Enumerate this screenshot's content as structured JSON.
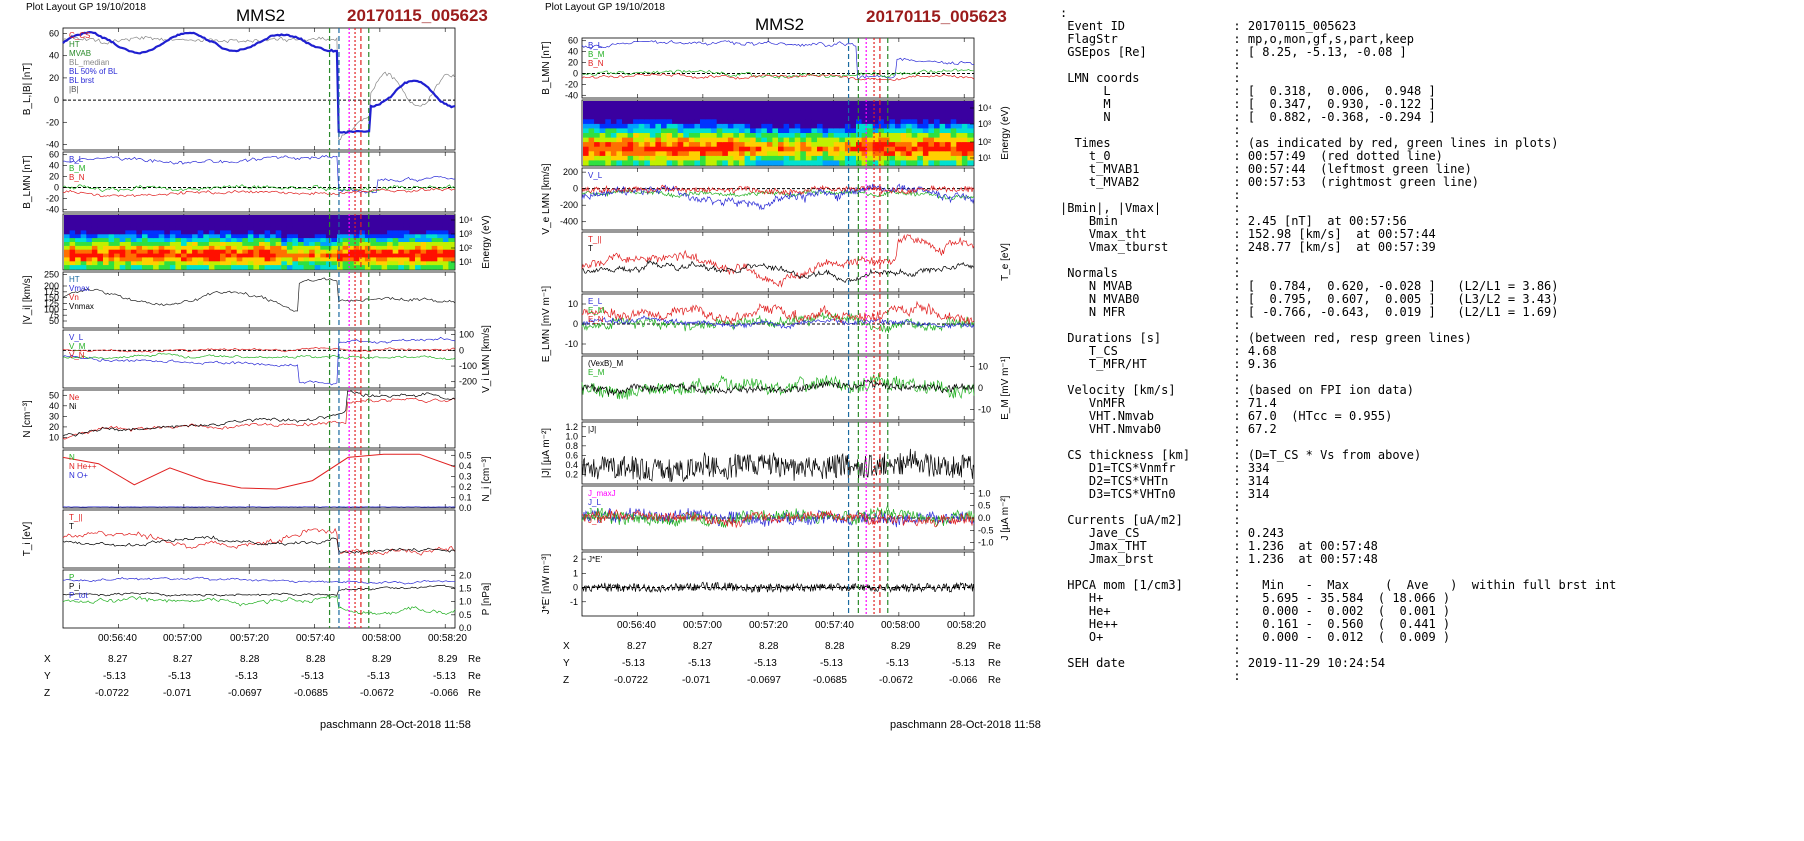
{
  "left": {
    "header": "Plot Layout GP 19/10/2018",
    "sc": "MMS2",
    "event": "20170115_005623",
    "footer": "paschmann 28-Oct-2018 11:58",
    "time_ticks": [
      "00:56:40",
      "00:57:00",
      "00:57:20",
      "00:57:40",
      "00:58:00",
      "00:58:20"
    ],
    "coords": {
      "rows": [
        {
          "label": "X",
          "values": [
            "8.27",
            "8.27",
            "8.28",
            "8.28",
            "8.29",
            "8.29"
          ],
          "unit": "Re"
        },
        {
          "label": "Y",
          "values": [
            "-5.13",
            "-5.13",
            "-5.13",
            "-5.13",
            "-5.13",
            "-5.13"
          ],
          "unit": "Re"
        },
        {
          "label": "Z",
          "values": [
            "-0.0722",
            "-0.071",
            "-0.0697",
            "-0.0685",
            "-0.0672",
            "-0.066"
          ],
          "unit": "Re"
        }
      ]
    }
  },
  "right": {
    "header": "Plot Layout GP 19/10/2018",
    "sc": "MMS2",
    "event": "20170115_005623",
    "footer": "paschmann 28-Oct-2018 11:58",
    "time_ticks": [
      "00:56:40",
      "00:57:00",
      "00:57:20",
      "00:57:40",
      "00:58:00",
      "00:58:20"
    ],
    "coords": {
      "rows": [
        {
          "label": "X",
          "values": [
            "8.27",
            "8.27",
            "8.28",
            "8.28",
            "8.29",
            "8.29"
          ],
          "unit": "Re"
        },
        {
          "label": "Y",
          "values": [
            "-5.13",
            "-5.13",
            "-5.13",
            "-5.13",
            "-5.13",
            "-5.13"
          ],
          "unit": "Re"
        },
        {
          "label": "Z",
          "values": [
            "-0.0722",
            "-0.071",
            "-0.0697",
            "-0.0685",
            "-0.0672",
            "-0.066"
          ],
          "unit": "Re"
        }
      ]
    }
  },
  "chart_data": [
    {
      "type": "line",
      "panel": "left",
      "x_range": [
        "00:56:23",
        "00:58:23"
      ],
      "event_lines": {
        "red_dotted": "00:57:49",
        "green_left": "00:57:44",
        "green_right": "00:57:53"
      },
      "subplots": [
        {
          "ylabel": "B_L,|B| [nT]",
          "ylim": [
            -45,
            65
          ],
          "yticks": [
            "-40",
            "-20",
            "0",
            "20",
            "40",
            "60"
          ],
          "legend": [
            "C_CS",
            "HT",
            "MVAB",
            "BL_median",
            "BL 50% of BL",
            "BL brst",
            "|B|"
          ],
          "series": [
            {
              "name": "BL brst",
              "color": "#1f1fd0"
            },
            {
              "name": "|B|",
              "color": "#555555"
            }
          ]
        },
        {
          "ylabel": "B_LMN [nT]",
          "ylim": [
            -45,
            65
          ],
          "yticks": [
            "-40",
            "-20",
            "0",
            "20",
            "40",
            "60"
          ],
          "legend": [
            "B_L",
            "B_M",
            "B_N"
          ],
          "series": [
            {
              "name": "B_L",
              "color": "#2b2bd6"
            },
            {
              "name": "B_M",
              "color": "#22b022"
            },
            {
              "name": "B_N",
              "color": "#e02020"
            }
          ]
        },
        {
          "ylabel": "Energy (eV)",
          "type": "heatmap",
          "yticks": [
            "10^4",
            "10^3",
            "10^2",
            "10^1"
          ]
        },
        {
          "ylabel": "|V_i| [km/s]",
          "ylim": [
            20,
            260
          ],
          "yticks": [
            "50",
            "75",
            "100",
            "125",
            "150",
            "175",
            "200",
            "250"
          ],
          "legend": [
            "HT",
            "Vmax",
            "Vn",
            "Vnmax"
          ]
        },
        {
          "ylabel": "V_i LMN [km/s]",
          "ylim": [
            -240,
            130
          ],
          "yticks": [
            "100",
            "0",
            "-100",
            "-200"
          ],
          "legend": [
            "V_L",
            "V_M",
            "V_N"
          ]
        },
        {
          "ylabel": "N [cm^-3]",
          "ylim": [
            0,
            55
          ],
          "yticks": [
            "10",
            "20",
            "30",
            "40",
            "50"
          ],
          "legend": [
            "Ne",
            "Ni"
          ]
        },
        {
          "ylabel": "N_i [cm^-3]",
          "ylim": [
            0,
            0.55
          ],
          "yticks": [
            "0.0",
            "0.1",
            "0.2",
            "0.3",
            "0.4",
            "0.5"
          ],
          "legend": [
            "N",
            "N He++",
            "N O+"
          ],
          "series": [
            {
              "name": "N He++",
              "color": "#e02020",
              "values": [
                0.48,
                0.42,
                0.22,
                0.38,
                0.26,
                0.19,
                0.18,
                0.26,
                0.48,
                0.51,
                0.51,
                0.39
              ]
            }
          ]
        },
        {
          "ylabel": "T_i [eV]",
          "legend": [
            "T_||",
            "T"
          ]
        },
        {
          "ylabel": "P [nPa]",
          "ylim": [
            0,
            2.2
          ],
          "yticks": [
            "0.0",
            "0.5",
            "1.0",
            "1.5",
            "2.0"
          ],
          "legend": [
            "P",
            "P_i",
            "P_tot"
          ]
        }
      ]
    },
    {
      "type": "line",
      "panel": "right",
      "x_range": [
        "00:56:23",
        "00:58:23"
      ],
      "subplots": [
        {
          "ylabel": "B_LMN [nT]",
          "ylim": [
            -45,
            65
          ],
          "yticks": [
            "60",
            "40",
            "20",
            "0",
            "-20",
            "-40"
          ],
          "legend": [
            "B_L",
            "B_M",
            "B_N"
          ]
        },
        {
          "ylabel": "Energy (eV)",
          "type": "heatmap",
          "yticks": [
            "10^4",
            "10^3",
            "10^2",
            "10^1"
          ]
        },
        {
          "ylabel": "V_e LMN [km/s]",
          "yticks": [
            "200",
            "0",
            "-200",
            "-400"
          ],
          "legend": [
            "V_L",
            "V_M",
            "V_N"
          ]
        },
        {
          "ylabel": "T_e [eV]",
          "legend": [
            "T_||",
            "T"
          ]
        },
        {
          "ylabel": "E_LMN [mV m^-1]",
          "yticks": [
            "10",
            "0",
            "-10"
          ],
          "legend": [
            "E_L",
            "E_M",
            "E_N"
          ]
        },
        {
          "ylabel": "E_M [mV m^-1]",
          "yticks": [
            "10",
            "0",
            "-10"
          ],
          "legend": [
            "(VexB)_M",
            "E_M"
          ]
        },
        {
          "ylabel": "|J| [uA m^-2]",
          "yticks": [
            "1.2",
            "1.0",
            "0.8",
            "0.6",
            "0.4",
            "0.2"
          ],
          "legend": [
            "|J|"
          ]
        },
        {
          "ylabel": "J [uA m^-2]",
          "yticks": [
            "1.0",
            "0.5",
            "0.0",
            "-0.5",
            "-1.0"
          ],
          "legend": [
            "J_maxJ",
            "J_L",
            "J_M",
            "J_N"
          ]
        },
        {
          "ylabel": "J*E' [nW m^-3]",
          "yticks": [
            "2",
            "1",
            "0",
            "-1"
          ],
          "legend": [
            "J*E'"
          ]
        }
      ]
    }
  ],
  "info": {
    "lines": [
      ":",
      " Event ID               : 20170115_005623",
      " FlagStr                : mp,o,mon,gf,s,part,keep",
      " GSEpos [Re]            : [ 8.25, -5.13, -0.08 ]",
      "                        :",
      " LMN coords             :",
      "      L                 : [  0.318,  0.006,  0.948 ]",
      "      M                 : [  0.347,  0.930, -0.122 ]",
      "      N                 : [  0.882, -0.368, -0.294 ]",
      "                        :",
      "  Times                 : (as indicated by red, green lines in plots)",
      "    t_0                 : 00:57:49  (red dotted line)",
      "    t_MVAB1             : 00:57:44  (leftmost green line)",
      "    t_MVAB2             : 00:57:53  (rightmost green line)",
      "                        :",
      "|Bmin|, |Vmax|          :",
      "    Bmin                : 2.45 [nT]  at 00:57:56",
      "    Vmax_tht            : 152.98 [km/s]  at 00:57:44",
      "    Vmax_tburst         : 248.77 [km/s]  at 00:57:39",
      "                        :",
      " Normals                :",
      "    N MVAB              : [  0.784,  0.620, -0.028 ]   (L2/L1 = 3.86)",
      "    N MVAB0             : [  0.795,  0.607,  0.005 ]   (L3/L2 = 3.43)",
      "    N MFR               : [ -0.766, -0.643,  0.019 ]   (L2/L1 = 1.69)",
      "                        :",
      " Durations [s]          : (between red, resp green lines)",
      "    T_CS                : 4.68",
      "    T_MFR/HT            : 9.36",
      "                        :",
      " Velocity [km/s]        : (based on FPI ion data)",
      "    VnMFR               : 71.4",
      "    VHT.Nmvab           : 67.0  (HTcc = 0.955)",
      "    VHT.Nmvab0          : 67.2",
      "                        :",
      " CS thickness [km]      : (D=T_CS * Vs from above)",
      "    D1=TCS*Vnmfr        : 334",
      "    D2=TCS*VHTn         : 314",
      "    D3=TCS*VHTn0        : 314",
      "                        :",
      " Currents [uA/m2]       :",
      "    Jave_CS             : 0.243",
      "    Jmax_THT            : 1.236  at 00:57:48",
      "    Jmax_brst           : 1.236  at 00:57:48",
      "                        :",
      " HPCA mom [1/cm3]       :   Min   -  Max     (  Ave   )  within full brst int",
      "    H+                  :   5.695 - 35.584  ( 18.066 )",
      "    He+                 :   0.000 -  0.002  (  0.001 )",
      "    He++                :   0.161 -  0.560  (  0.441 )",
      "    O+                  :   0.000 -  0.012  (  0.009 )",
      "                        :",
      " SEH date               : 2019-11-29 10:24:54",
      "                        :"
    ]
  }
}
